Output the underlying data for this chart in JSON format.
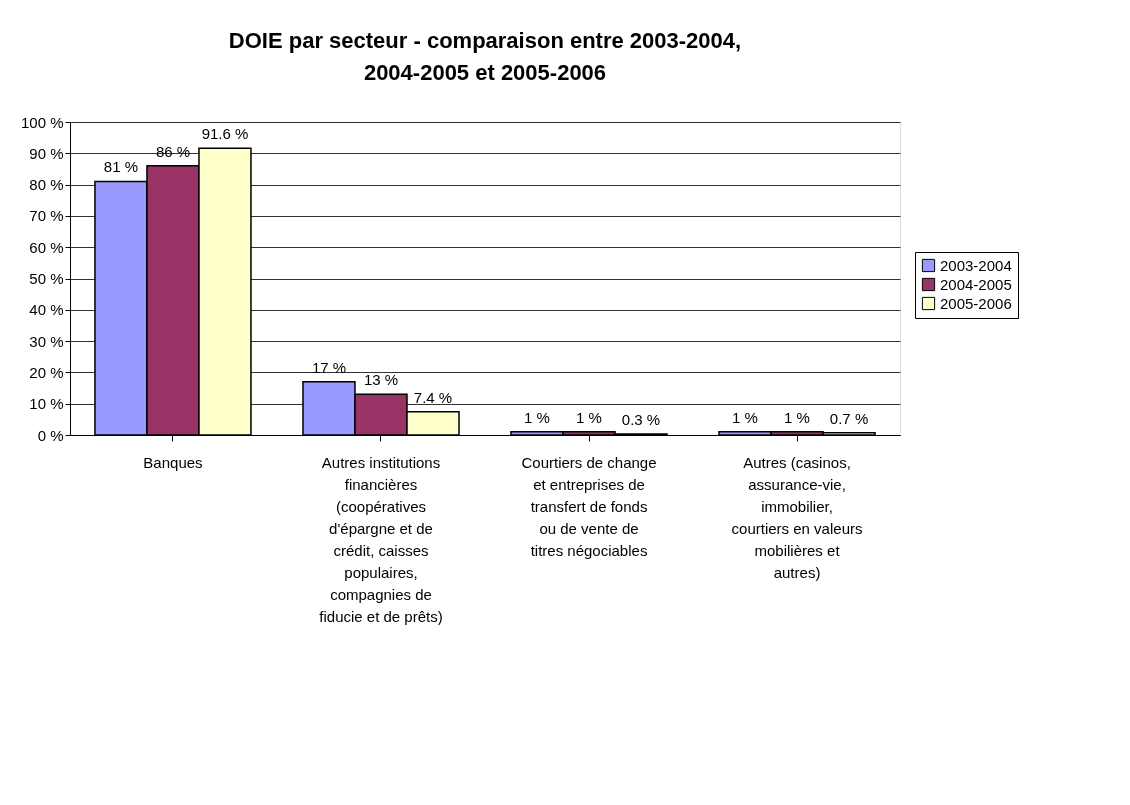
{
  "chart_data": {
    "type": "bar",
    "title": "DOIE par secteur - comparaison entre 2003-2004, 2004-2005 et 2005-2006",
    "categories": [
      "Banques",
      "Autres institutions financières (coopératives d'épargne et de crédit, caisses populaires, compagnies de fiducie et de prêts)",
      "Courtiers de change et entreprises de transfert de fonds ou de vente de titres négociables",
      "Autres (casinos, assurance-vie, immobilier, courtiers en valeurs mobilières et autres)"
    ],
    "series": [
      {
        "name": "2003-2004",
        "color": "#9999ff",
        "values": [
          81,
          17,
          1,
          1
        ],
        "value_labels": [
          "81 %",
          "17 %",
          "1 %",
          "1 %"
        ]
      },
      {
        "name": "2004-2005",
        "color": "#993366",
        "values": [
          86,
          13,
          1,
          1
        ],
        "value_labels": [
          "86  %",
          "13  %",
          "1  %",
          "1  %"
        ]
      },
      {
        "name": "2005-2006",
        "color": "#ffffcc",
        "values": [
          91.6,
          7.4,
          0.3,
          0.7
        ],
        "value_labels": [
          "91.6 %",
          "7.4 %",
          "0.3 %",
          "0.7 %"
        ]
      }
    ],
    "ylim": [
      0,
      100
    ],
    "yticks": [
      {
        "value": 0,
        "label": "0 %"
      },
      {
        "value": 10,
        "label": "10 %"
      },
      {
        "value": 20,
        "label": "20 %"
      },
      {
        "value": 30,
        "label": "30 %"
      },
      {
        "value": 40,
        "label": "40 %"
      },
      {
        "value": 50,
        "label": "50 %"
      },
      {
        "value": 60,
        "label": "60 %"
      },
      {
        "value": 70,
        "label": "70 %"
      },
      {
        "value": 80,
        "label": "80 %"
      },
      {
        "value": 90,
        "label": "90 %"
      },
      {
        "value": 100,
        "label": "100 %"
      }
    ],
    "grid": "y",
    "legend": "right"
  }
}
